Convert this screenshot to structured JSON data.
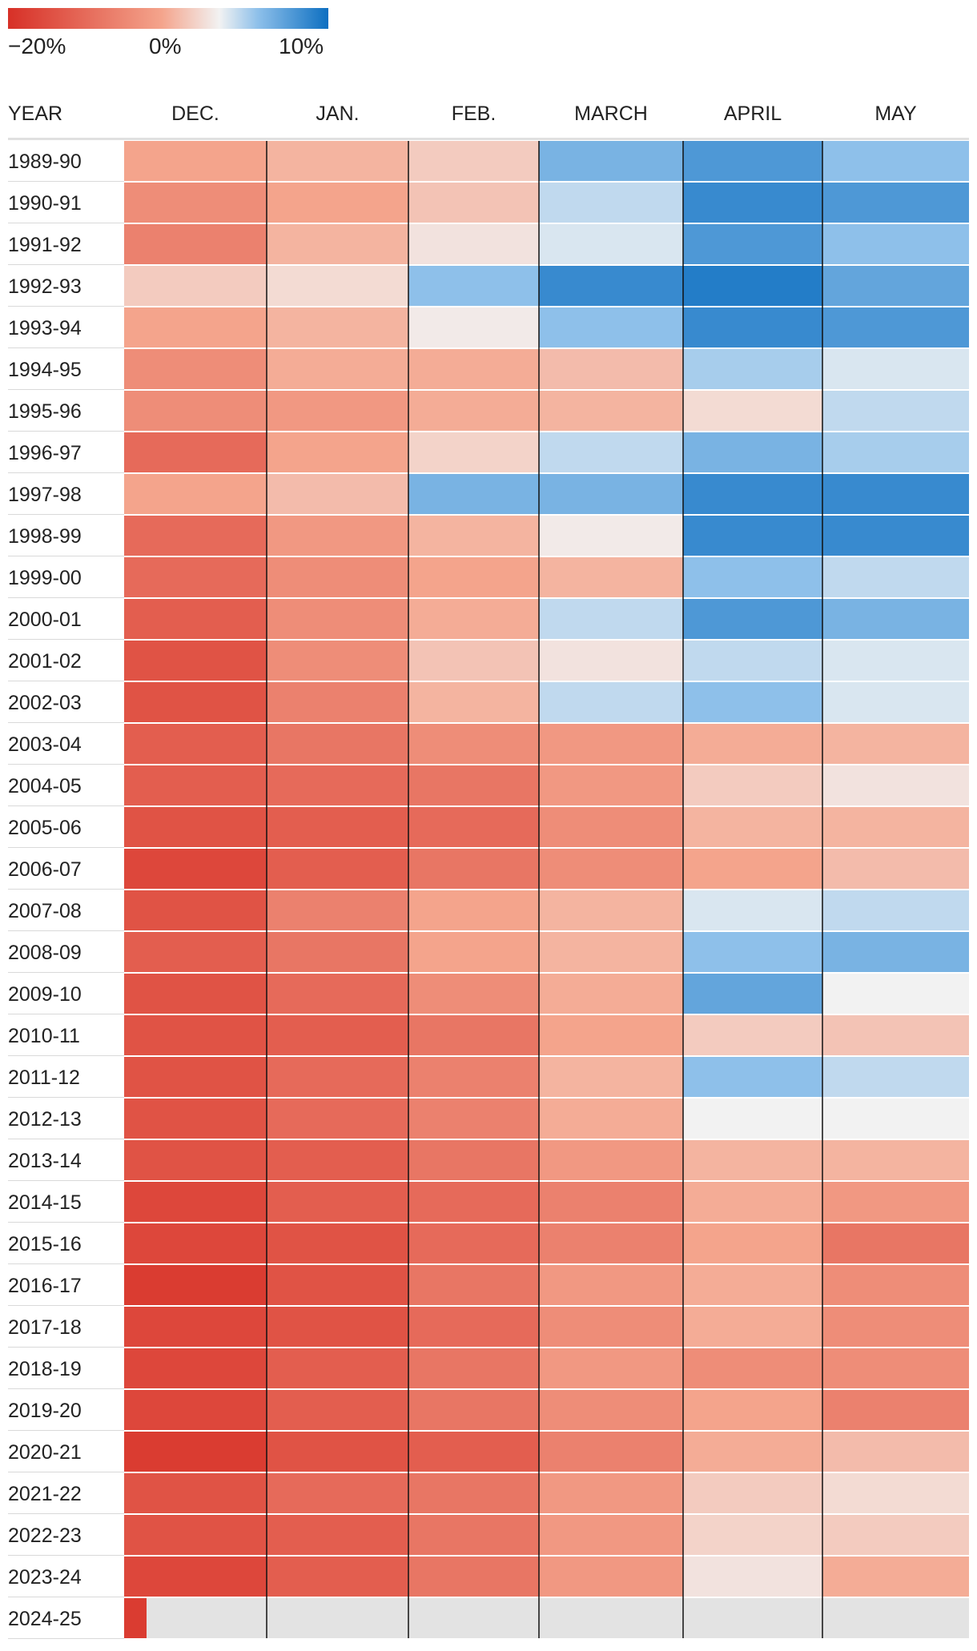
{
  "legend": {
    "min_label": "−20%",
    "mid_label": "0%",
    "max_label": "10%",
    "colors": {
      "negative": "#d73027",
      "neutral": "#f2f2f2",
      "positive": "#0d6fc1"
    },
    "range": [
      -20,
      10
    ]
  },
  "header": {
    "year_label": "YEAR"
  },
  "chart_data": {
    "type": "heatmap",
    "title": "",
    "x_categories": [
      "DEC.",
      "JAN.",
      "FEB.",
      "MARCH",
      "APRIL",
      "MAY"
    ],
    "y_categories": [
      "1989-90",
      "1990-91",
      "1991-92",
      "1992-93",
      "1993-94",
      "1994-95",
      "1995-96",
      "1996-97",
      "1997-98",
      "1998-99",
      "1999-00",
      "2000-01",
      "2001-02",
      "2002-03",
      "2003-04",
      "2004-05",
      "2005-06",
      "2006-07",
      "2007-08",
      "2008-09",
      "2009-10",
      "2010-11",
      "2011-12",
      "2012-13",
      "2013-14",
      "2014-15",
      "2015-16",
      "2016-17",
      "2017-18",
      "2018-19",
      "2019-20",
      "2020-21",
      "2021-22",
      "2022-23",
      "2023-24",
      "2024-25"
    ],
    "value_unit": "%",
    "color_range": [
      -20,
      10
    ],
    "values": [
      [
        -10,
        -8,
        -5,
        5,
        7,
        4
      ],
      [
        -12,
        -10,
        -6,
        2,
        8,
        7
      ],
      [
        -13,
        -8,
        -2,
        1,
        7,
        4
      ],
      [
        -5,
        -3,
        4,
        8,
        9,
        6
      ],
      [
        -10,
        -8,
        -1,
        4,
        8,
        7
      ],
      [
        -12,
        -9,
        -9,
        -7,
        3,
        1
      ],
      [
        -12,
        -11,
        -9,
        -8,
        -3,
        2
      ],
      [
        -15,
        -10,
        -4,
        2,
        5,
        3
      ],
      [
        -10,
        -7,
        5,
        5,
        8,
        8
      ],
      [
        -15,
        -11,
        -8,
        -1,
        8,
        8
      ],
      [
        -15,
        -12,
        -10,
        -8,
        4,
        2
      ],
      [
        -16,
        -12,
        -9,
        2,
        7,
        5
      ],
      [
        -17,
        -12,
        -6,
        -2,
        2,
        1
      ],
      [
        -17,
        -13,
        -8,
        2,
        4,
        1
      ],
      [
        -16,
        -14,
        -12,
        -11,
        -9,
        -8
      ],
      [
        -16,
        -15,
        -14,
        -11,
        -5,
        -2
      ],
      [
        -17,
        -16,
        -15,
        -12,
        -8,
        -8
      ],
      [
        -18,
        -16,
        -14,
        -12,
        -10,
        -7
      ],
      [
        -17,
        -13,
        -10,
        -8,
        1,
        2
      ],
      [
        -16,
        -14,
        -10,
        -8,
        4,
        5
      ],
      [
        -17,
        -15,
        -12,
        -9,
        6,
        0
      ],
      [
        -17,
        -16,
        -14,
        -10,
        -5,
        -6
      ],
      [
        -17,
        -15,
        -13,
        -8,
        4,
        2
      ],
      [
        -17,
        -15,
        -13,
        -9,
        0,
        0
      ],
      [
        -17,
        -16,
        -14,
        -11,
        -8,
        -8
      ],
      [
        -18,
        -16,
        -15,
        -13,
        -9,
        -11
      ],
      [
        -18,
        -17,
        -15,
        -13,
        -10,
        -14
      ],
      [
        -19,
        -17,
        -14,
        -11,
        -9,
        -12
      ],
      [
        -18,
        -17,
        -15,
        -12,
        -9,
        -12
      ],
      [
        -18,
        -16,
        -14,
        -11,
        -12,
        -12
      ],
      [
        -18,
        -16,
        -14,
        -12,
        -10,
        -13
      ],
      [
        -19,
        -17,
        -16,
        -13,
        -9,
        -7
      ],
      [
        -17,
        -15,
        -14,
        -11,
        -5,
        -3
      ],
      [
        -17,
        -16,
        -14,
        -11,
        -4,
        -5
      ],
      [
        -18,
        -16,
        -14,
        -11,
        -2,
        -9
      ],
      [
        -19,
        null,
        null,
        null,
        null,
        null
      ]
    ],
    "missing_color": "#e3e3e3"
  }
}
